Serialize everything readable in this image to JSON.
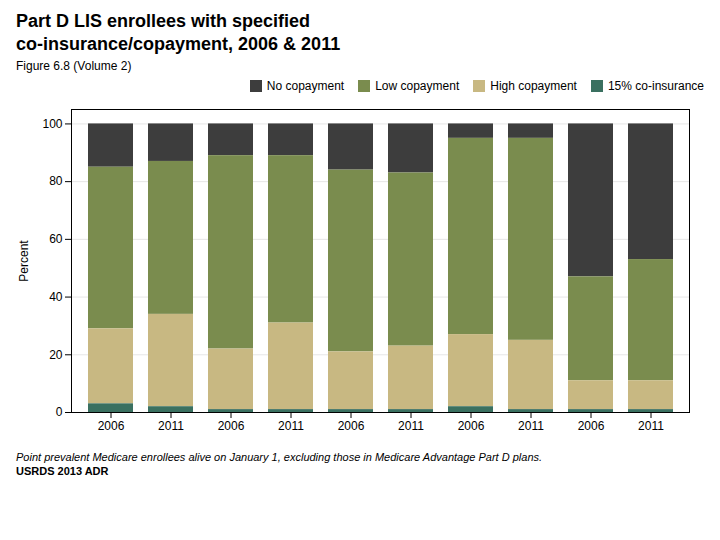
{
  "chart_data": {
    "type": "bar",
    "stacked": true,
    "title": "Part D LIS enrollees with specified\nco-insurance/copayment, 2006 & 2011",
    "subtitle": "Figure 6.8 (Volume 2)",
    "ylabel": "Percent",
    "footnote": "Point prevalent Medicare enrollees alive on January 1, excluding those in Medicare Advantage Part D plans.",
    "source": "USRDS 2013 ADR",
    "categories": [
      "2006",
      "2011",
      "2006",
      "2011",
      "2006",
      "2011",
      "2006",
      "2011",
      "2006",
      "2011"
    ],
    "series": [
      {
        "name": "No copayment",
        "color": "#3d3d3d",
        "values": [
          15,
          13,
          11,
          11,
          16,
          17,
          5,
          5,
          53,
          47
        ]
      },
      {
        "name": "Low copayment",
        "color": "#7a8c4e",
        "values": [
          56,
          53,
          67,
          58,
          63,
          60,
          68,
          70,
          36,
          42
        ]
      },
      {
        "name": "High copayment",
        "color": "#c8b882",
        "values": [
          26,
          32,
          21,
          30,
          20,
          22,
          25,
          24,
          10,
          10
        ]
      },
      {
        "name": "15% co-insurance",
        "color": "#3a7060",
        "values": [
          3,
          2,
          1,
          1,
          1,
          1,
          2,
          1,
          1,
          1
        ]
      }
    ],
    "ylim": [
      0,
      105
    ],
    "yticks": [
      0,
      20,
      40,
      60,
      80,
      100
    ],
    "grid": true,
    "legend": "upper right"
  }
}
